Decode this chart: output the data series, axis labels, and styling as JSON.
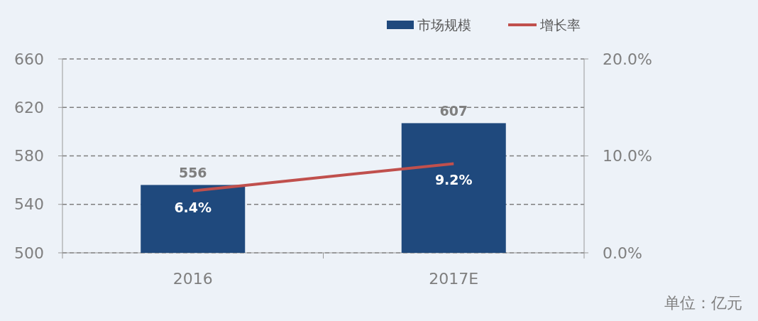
{
  "chart_data": {
    "type": "bar",
    "categories": [
      "2016",
      "2017E"
    ],
    "series": [
      {
        "name": "市场规模",
        "color": "#1f497d",
        "values": [
          556,
          607
        ],
        "value_labels": [
          "556",
          "607"
        ]
      },
      {
        "name": "增长率",
        "type": "line",
        "axis": "y2",
        "color": "#c0504d",
        "values": [
          6.4,
          9.2
        ],
        "value_labels": [
          "6.4%",
          "9.2%"
        ]
      }
    ],
    "ylim": [
      500,
      660
    ],
    "yticks": [
      500,
      540,
      580,
      620,
      660
    ],
    "y2lim": [
      0,
      20
    ],
    "y2ticks": [
      {
        "value": 0,
        "label": "0.0%"
      },
      {
        "value": 10,
        "label": "10.0%"
      },
      {
        "value": 20,
        "label": "20.0%"
      }
    ],
    "grid": "y",
    "legend": "top right",
    "marker": "none",
    "line_style": "solid",
    "annotations": [
      "单位：亿元"
    ]
  }
}
